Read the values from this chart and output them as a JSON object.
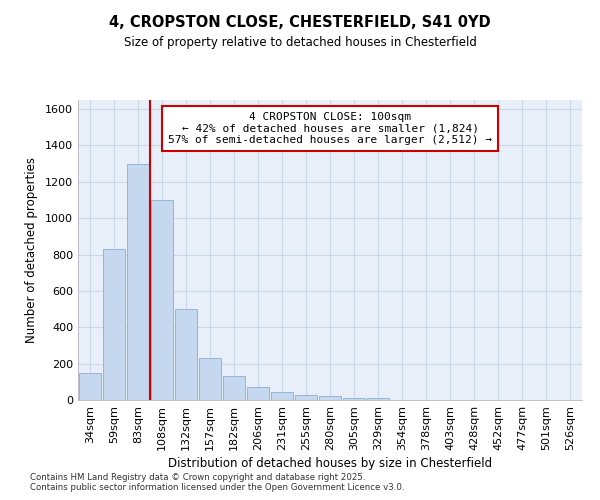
{
  "title": "4, CROPSTON CLOSE, CHESTERFIELD, S41 0YD",
  "subtitle": "Size of property relative to detached houses in Chesterfield",
  "xlabel": "Distribution of detached houses by size in Chesterfield",
  "ylabel": "Number of detached properties",
  "categories": [
    "34sqm",
    "59sqm",
    "83sqm",
    "108sqm",
    "132sqm",
    "157sqm",
    "182sqm",
    "206sqm",
    "231sqm",
    "255sqm",
    "280sqm",
    "305sqm",
    "329sqm",
    "354sqm",
    "378sqm",
    "403sqm",
    "428sqm",
    "452sqm",
    "477sqm",
    "501sqm",
    "526sqm"
  ],
  "values": [
    150,
    830,
    1300,
    1100,
    500,
    230,
    130,
    70,
    45,
    30,
    20,
    10,
    10,
    0,
    0,
    0,
    0,
    0,
    0,
    0,
    0
  ],
  "bar_color": "#c5d8f0",
  "bar_edge_color": "#89aed4",
  "vline_x": 2.5,
  "vline_color": "#cc0000",
  "annotation_text": "4 CROPSTON CLOSE: 100sqm\n← 42% of detached houses are smaller (1,824)\n57% of semi-detached houses are larger (2,512) →",
  "annotation_box_color": "#ffffff",
  "annotation_box_edge": "#cc0000",
  "ylim": [
    0,
    1650
  ],
  "yticks": [
    0,
    200,
    400,
    600,
    800,
    1000,
    1200,
    1400,
    1600
  ],
  "grid_color": "#c8d8e8",
  "bg_color": "#e8eff8",
  "footer_line1": "Contains HM Land Registry data © Crown copyright and database right 2025.",
  "footer_line2": "Contains public sector information licensed under the Open Government Licence v3.0."
}
